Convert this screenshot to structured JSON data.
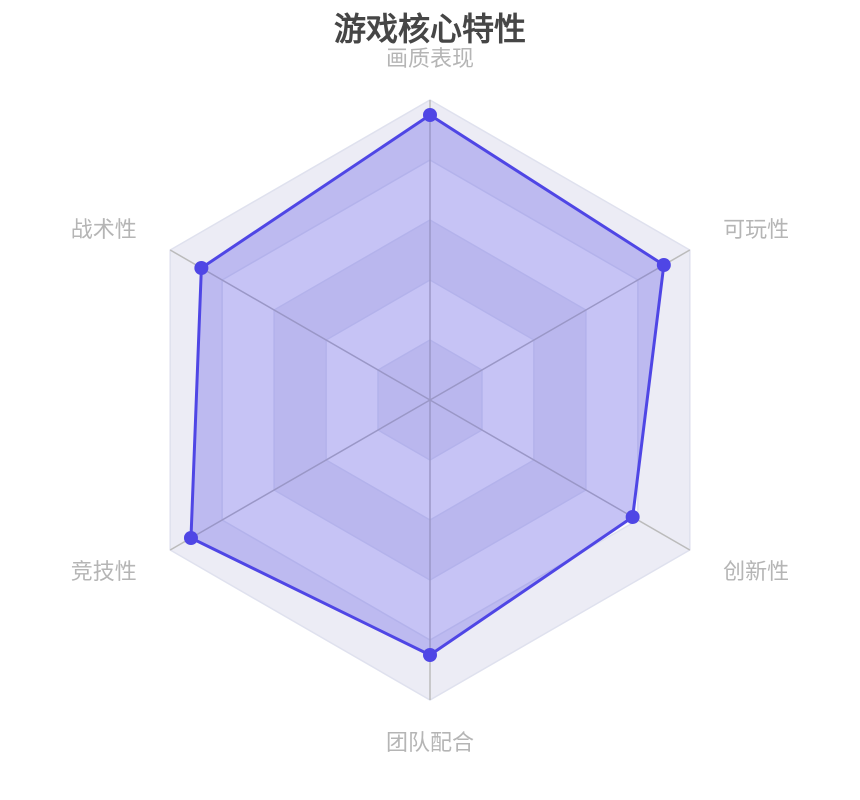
{
  "chart_data": {
    "type": "radar",
    "title": "游戏核心特性",
    "indicators": [
      {
        "name": "画质表现",
        "max": 100
      },
      {
        "name": "可玩性",
        "max": 100
      },
      {
        "name": "创新性",
        "max": 100
      },
      {
        "name": "团队配合",
        "max": 100
      },
      {
        "name": "竞技性",
        "max": 100
      },
      {
        "name": "战术性",
        "max": 100
      }
    ],
    "series": [
      {
        "values": [
          95,
          90,
          78,
          85,
          92,
          88
        ]
      }
    ],
    "split_number": 5,
    "colors": {
      "series": "#4f46e5",
      "area": "rgba(79,70,229,0.3)",
      "split_line": "#dfe1ee",
      "axis_line": "#bbbbbb"
    }
  }
}
